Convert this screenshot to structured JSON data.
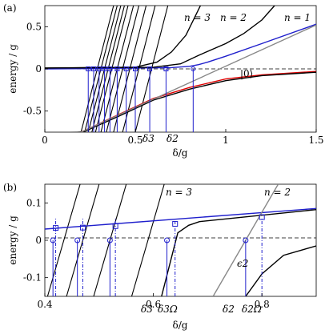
{
  "chart_data": [
    {
      "panel_label": "(a)",
      "type": "line",
      "xlabel": "δ/g",
      "ylabel": "energy / g",
      "xlim": [
        0,
        1.5
      ],
      "ylim": [
        -0.75,
        0.75
      ],
      "xticks": [
        0,
        0.5,
        1,
        1.5
      ],
      "xtick_labels": [
        "0",
        "0.5",
        "1",
        "1.5"
      ],
      "yticks": [
        -0.5,
        0,
        0.5
      ],
      "ytick_labels": [
        "-0.5",
        "0",
        "0.5"
      ],
      "grid": false,
      "text_labels": {
        "n3": "n = 3",
        "n2": "n = 2",
        "n1": "n = 1",
        "ket0": "|0⟩",
        "d3": "δ3",
        "d2": "δ2"
      },
      "series": [
        {
          "color": "#000000",
          "points": [
            [
              0.2,
              -0.75
            ],
            [
              0.1,
              -0.76
            ]
          ]
        },
        {
          "color": "#1f1fcc",
          "points": [
            [
              0.0,
              0.0
            ],
            [
              0.3,
              0.005
            ],
            [
              0.5,
              0.01
            ],
            [
              0.7,
              0.015
            ],
            [
              0.8,
              0.03
            ],
            [
              0.85,
              0.05
            ],
            [
              0.9,
              0.08
            ],
            [
              1.0,
              0.15
            ],
            [
              1.2,
              0.3
            ],
            [
              1.5,
              0.53
            ]
          ]
        },
        {
          "color": "#000000",
          "points": [
            [
              0.0,
              0.01
            ],
            [
              0.6,
              0.02
            ],
            [
              0.75,
              0.06
            ],
            [
              0.85,
              0.16
            ],
            [
              1.0,
              0.3
            ],
            [
              1.1,
              0.42
            ],
            [
              1.2,
              0.58
            ],
            [
              1.27,
              0.75
            ]
          ]
        },
        {
          "color": "#000000",
          "points": [
            [
              0.0,
              0.01
            ],
            [
              0.5,
              0.02
            ],
            [
              0.62,
              0.08
            ],
            [
              0.7,
              0.2
            ],
            [
              0.78,
              0.4
            ],
            [
              0.86,
              0.75
            ]
          ]
        },
        {
          "color": "#e00000",
          "points": [
            [
              0.2,
              -0.75
            ],
            [
              0.4,
              -0.55
            ],
            [
              0.6,
              -0.35
            ],
            [
              0.8,
              -0.22
            ],
            [
              1.0,
              -0.12
            ],
            [
              1.2,
              -0.07
            ],
            [
              1.5,
              -0.03
            ]
          ]
        },
        {
          "color": "#000000",
          "points": [
            [
              0.21,
              -0.75
            ],
            [
              0.4,
              -0.57
            ],
            [
              0.6,
              -0.37
            ],
            [
              0.8,
              -0.24
            ],
            [
              1.0,
              -0.14
            ],
            [
              1.2,
              -0.08
            ],
            [
              1.5,
              -0.04
            ]
          ]
        },
        {
          "color": "#888888",
          "points": [
            [
              0.2,
              -0.75
            ],
            [
              1.5,
              0.52
            ]
          ]
        }
      ],
      "markers": {
        "squares_x": [
          0.24,
          0.27,
          0.3,
          0.33,
          0.36,
          0.4,
          0.45,
          0.5,
          0.58,
          0.67
        ],
        "square_y": 0.0,
        "circle_x": 0.82,
        "circle_y": 0.0,
        "blue_vlines_x": [
          0.24,
          0.27,
          0.3,
          0.33,
          0.36,
          0.4,
          0.45,
          0.5,
          0.58,
          0.67,
          0.82
        ]
      }
    },
    {
      "panel_label": "(b)",
      "type": "line",
      "xlabel": "δ/g",
      "ylabel": "energy / g",
      "xlim": [
        0.4,
        0.9
      ],
      "ylim": [
        -0.15,
        0.15
      ],
      "xticks": [
        0.4,
        0.6,
        0.8
      ],
      "xtick_labels": [
        "0.4",
        "0.6",
        "0.8"
      ],
      "yticks": [
        -0.1,
        0,
        0.1
      ],
      "ytick_labels": [
        "-0.1",
        "0",
        "0.1"
      ],
      "grid": false,
      "text_labels": {
        "n3": "n = 3",
        "n2": "n = 2",
        "eps2": "ϵ2",
        "d3": "δ3",
        "d3om": "δ3Ω",
        "d2": "δ2",
        "d2om": "δ2Ω"
      },
      "series": [
        {
          "color": "#1f1fcc",
          "points": [
            [
              0.4,
              0.03
            ],
            [
              0.9,
              0.085
            ]
          ]
        },
        {
          "color": "#000000",
          "points": [
            [
              0.615,
              -0.15
            ],
            [
              0.645,
              0.02
            ],
            [
              0.665,
              0.04
            ],
            [
              0.685,
              0.05
            ],
            [
              0.9,
              0.082
            ]
          ]
        },
        {
          "color": "#000000",
          "points": [
            [
              0.77,
              -0.15
            ],
            [
              0.8,
              -0.09
            ],
            [
              0.84,
              -0.04
            ],
            [
              0.9,
              -0.015
            ]
          ]
        },
        {
          "color": "#888888",
          "points": [
            [
              0.71,
              -0.15
            ],
            [
              0.83,
              0.15
            ]
          ]
        }
      ],
      "markers": {
        "squares": [
          [
            0.42,
            0.033
          ],
          [
            0.47,
            0.034
          ],
          [
            0.53,
            0.038
          ],
          [
            0.64,
            0.044
          ],
          [
            0.8,
            0.062
          ]
        ],
        "circles": [
          [
            0.415,
            0.0
          ],
          [
            0.46,
            0.0
          ],
          [
            0.52,
            0.0
          ],
          [
            0.625,
            0.0
          ],
          [
            0.77,
            0.0
          ]
        ],
        "solid_vlines_x": [
          0.415,
          0.46,
          0.52,
          0.625,
          0.77
        ],
        "dashdot_vlines_x": [
          0.42,
          0.47,
          0.53,
          0.64,
          0.8
        ]
      }
    }
  ]
}
